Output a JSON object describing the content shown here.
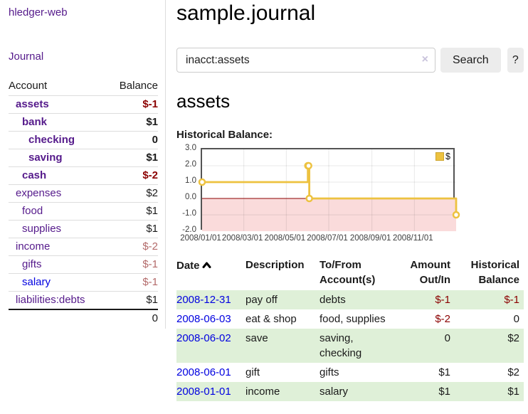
{
  "app": {
    "brand": "hledger-web"
  },
  "colors": {
    "link_purple": "#551a8b",
    "link_blue": "#0000e0",
    "negative_strong": "#8b0000",
    "negative_soft": "#b36a6a",
    "row_stripe_green": "#dff0d8",
    "chart_line_gold": "#edc240",
    "chart_negative_region": "#fadbdb",
    "chart_zero_line": "#8b0000",
    "chart_border": "#545454"
  },
  "sidebar": {
    "journal_link": "Journal",
    "accounts": {
      "headers": {
        "account": "Account",
        "balance": "Balance"
      },
      "rows": [
        {
          "name": "assets",
          "depth": 1,
          "in_acct": true,
          "balance": "$-1",
          "neg": "strong"
        },
        {
          "name": "bank",
          "depth": 2,
          "in_acct": true,
          "balance": "$1"
        },
        {
          "name": "checking",
          "depth": 3,
          "in_acct": true,
          "balance": "0"
        },
        {
          "name": "saving",
          "depth": 3,
          "in_acct": true,
          "balance": "$1"
        },
        {
          "name": "cash",
          "depth": 2,
          "in_acct": true,
          "balance": "$-2",
          "neg": "strong"
        },
        {
          "name": "expenses",
          "depth": 1,
          "balance": "$2"
        },
        {
          "name": "food",
          "depth": 2,
          "balance": "$1"
        },
        {
          "name": "supplies",
          "depth": 2,
          "balance": "$1"
        },
        {
          "name": "income",
          "depth": 1,
          "balance": "$-2",
          "neg": "soft"
        },
        {
          "name": "gifts",
          "depth": 2,
          "balance": "$-1",
          "neg": "soft"
        },
        {
          "name": "salary",
          "depth": 2,
          "balance": "$-1",
          "neg": "soft",
          "link": "blue"
        },
        {
          "name": "liabilities:debts",
          "depth": 1,
          "balance": "$1"
        }
      ],
      "total": "0"
    }
  },
  "main": {
    "title": "sample.journal",
    "search": {
      "value": "inacct:assets",
      "clear_icon": "×",
      "search_label": "Search",
      "help_label": "?"
    },
    "account_heading": "assets",
    "chart_label": "Historical Balance:"
  },
  "chart_data": {
    "type": "line",
    "title": "Historical Balance:",
    "step": true,
    "legend_position": "top-right",
    "ylim": [
      -2,
      3
    ],
    "x_max_day": 365,
    "y_ticks": [
      {
        "label": "3.0",
        "value": 3
      },
      {
        "label": "2.0",
        "value": 2
      },
      {
        "label": "1.0",
        "value": 1
      },
      {
        "label": "0.0",
        "value": 0
      },
      {
        "label": "-1.0",
        "value": -1
      },
      {
        "label": "-2.0",
        "value": -2
      }
    ],
    "x_ticks": [
      {
        "label": "2008/01/01",
        "day": 0
      },
      {
        "label": "2008/03/01",
        "day": 60
      },
      {
        "label": "2008/05/01",
        "day": 121
      },
      {
        "label": "2008/07/01",
        "day": 182
      },
      {
        "label": "2008/09/01",
        "day": 244
      },
      {
        "label": "2008/11/01",
        "day": 305
      }
    ],
    "series": [
      {
        "name": "$",
        "color": "#edc240",
        "points": [
          {
            "date": "2008/01/01",
            "day": 0,
            "value": 1
          },
          {
            "date": "2008/06/01",
            "day": 152,
            "value": 2
          },
          {
            "date": "2008/06/02",
            "day": 153,
            "value": 2
          },
          {
            "date": "2008/06/03",
            "day": 154,
            "value": 0
          },
          {
            "date": "2008/12/31",
            "day": 365,
            "value": -1
          }
        ]
      }
    ]
  },
  "register": {
    "headers": [
      {
        "label": "Date",
        "sort": true
      },
      {
        "label": "Description"
      },
      {
        "label": "To/From Account(s)"
      },
      {
        "label": "Amount Out/In",
        "align": "right"
      },
      {
        "label": "Historical Balance",
        "align": "right"
      }
    ],
    "rows": [
      {
        "date": "2008-12-31",
        "description": "pay off",
        "accounts": "debts",
        "amount": "$-1",
        "amount_neg": true,
        "balance": "$-1",
        "balance_neg": true,
        "stripe": true
      },
      {
        "date": "2008-06-03",
        "description": "eat & shop",
        "accounts": "food, supplies",
        "amount": "$-2",
        "amount_neg": true,
        "balance": "0",
        "balance_neg": false,
        "stripe": false
      },
      {
        "date": "2008-06-02",
        "description": "save",
        "accounts": "saving, checking",
        "amount": "0",
        "amount_neg": false,
        "balance": "$2",
        "balance_neg": false,
        "stripe": true
      },
      {
        "date": "2008-06-01",
        "description": "gift",
        "accounts": "gifts",
        "amount": "$1",
        "amount_neg": false,
        "balance": "$2",
        "balance_neg": false,
        "stripe": false
      },
      {
        "date": "2008-01-01",
        "description": "income",
        "accounts": "salary",
        "amount": "$1",
        "amount_neg": false,
        "balance": "$1",
        "balance_neg": false,
        "stripe": true
      }
    ]
  }
}
